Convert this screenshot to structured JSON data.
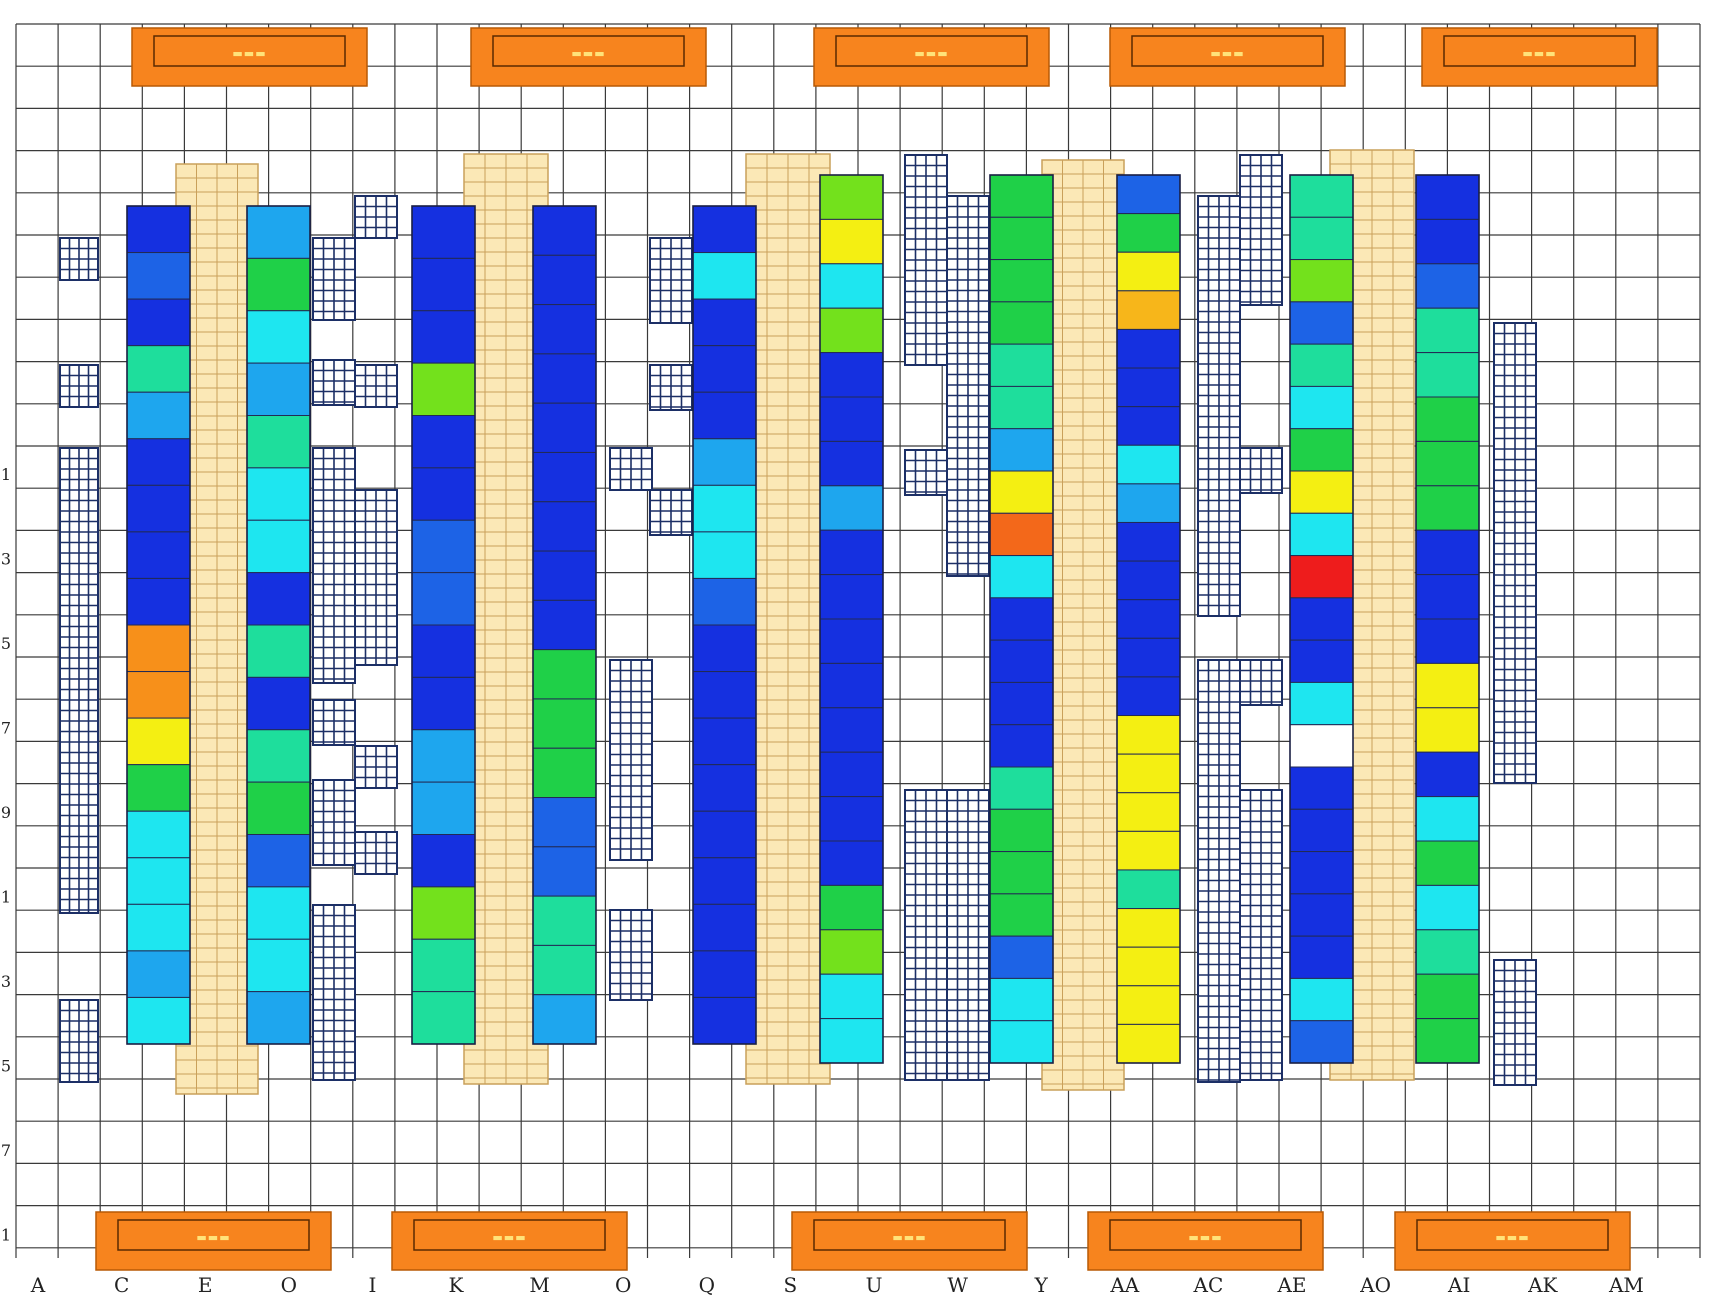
{
  "colors": {
    "grid": "#3a3a3a",
    "fine_grid": "#1c2f66",
    "orange": "#f7841e",
    "orange_border": "#b85a05",
    "cream": "#fbe8b6",
    "cream_line": "#c9a05a",
    "palette": {
      "B": "#1530e0",
      "b": "#1d63e6",
      "s": "#1ea6ee",
      "c": "#1ee6f0",
      "t": "#1ede9c",
      "g": "#1fd048",
      "l": "#73e11c",
      "y": "#f4ef12",
      "a": "#f7b61a",
      "o": "#f7901a",
      "r": "#f3681a",
      "R": "#ee1c1c",
      "w": "#ffffff"
    }
  },
  "top_blocks": [
    {
      "label": "▬▬▬"
    },
    {
      "label": "▬▬▬"
    },
    {
      "label": "▬▬▬"
    },
    {
      "label": "▬▬▬"
    },
    {
      "label": "▬▬▬"
    }
  ],
  "bottom_blocks": [
    {
      "label": "▬▬▬"
    },
    {
      "label": "▬▬▬"
    },
    {
      "label": "▬▬▬"
    },
    {
      "label": "▬▬▬"
    },
    {
      "label": "▬▬▬"
    }
  ],
  "bottom_labels": [
    "A",
    "C",
    "E",
    "O",
    "I",
    "K",
    "M",
    "O",
    "Q",
    "S",
    "U",
    "W",
    "Y",
    "AA",
    "AC",
    "AE",
    "AO",
    "AI",
    "AK",
    "AM"
  ],
  "left_labels": [
    "1",
    "3",
    "5",
    "7",
    "9",
    "1",
    "3",
    "5",
    "7",
    "1"
  ],
  "columns": [
    {
      "cells": "BbBtsBBBBooygcccsc"
    },
    {
      "cells": "sgcstccBtBtgbccs"
    },
    {
      "cells": "BBBlBBbbBBssBltt"
    },
    {
      "cells": "BBBBBBBBBgggbbtts"
    },
    {
      "cells": "BcBBBsccbBBBBBBBBB"
    },
    {
      "cells": "lyclBBBsBBBBBBBBglcc"
    },
    {
      "cells": "ggggttsyrcBBBBtgggbcc"
    },
    {
      "cells": "bgyaBBBcsBBBBByyyytyyyy"
    },
    {
      "cells": "ttlbtcgycRBBcwBBBBBcb"
    },
    {
      "cells": "BBbttgggBBByyBcgctgg"
    }
  ]
}
